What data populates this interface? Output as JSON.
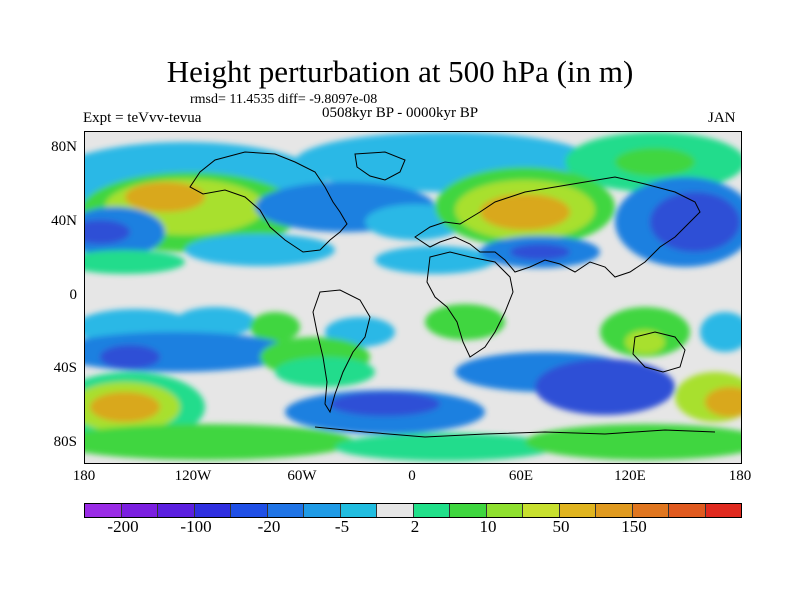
{
  "title": "Height perturbation at 500 hPa (in m)",
  "stats": "rmsd= 11.4535 diff= -9.8097e-08",
  "experiment": "Expt = teVvv-tevua",
  "period": "0508kyr BP - 0000kyr BP",
  "month": "JAN",
  "axes": {
    "y_ticks": [
      "80N",
      "40N",
      "0",
      "40S",
      "80S"
    ],
    "x_ticks": [
      "180",
      "120W",
      "60W",
      "0",
      "60E",
      "120E",
      "180"
    ]
  },
  "colorbar": {
    "colors": [
      "#9a2be6",
      "#7b1fe0",
      "#5b1fe0",
      "#2f2fe0",
      "#1f4fe6",
      "#1f74e6",
      "#1f9be6",
      "#21bde0",
      "#e6e6e6",
      "#21e08a",
      "#3fd63f",
      "#8fe02f",
      "#c8e02f",
      "#e0b41f",
      "#e09a1f",
      "#e0761f",
      "#e05a1f",
      "#e02a1f"
    ],
    "labels": [
      "-200",
      "-100",
      "-20",
      "-5",
      "2",
      "10",
      "50",
      "150"
    ]
  },
  "palette": {
    "background": "#e6e6e6",
    "dark_blue": "#2f4fd6",
    "blue": "#1f80e0",
    "light_blue": "#29b8e6",
    "teal_green": "#21dc8c",
    "green": "#3fd63f",
    "yellow_green": "#a8e02f",
    "orange": "#d9a81f"
  }
}
